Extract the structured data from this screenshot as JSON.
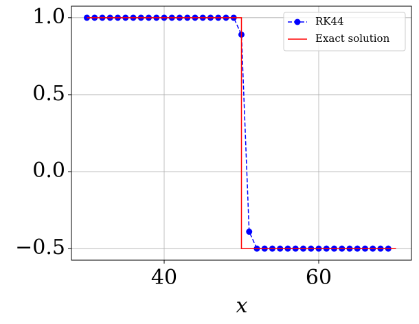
{
  "chart_data": {
    "type": "line",
    "xlabel": "x",
    "xlim": [
      28,
      72
    ],
    "ylim": [
      -0.575,
      1.075
    ],
    "xticks": [
      40,
      60
    ],
    "yticks": [
      {
        "value": -0.5,
        "label": "−0.5"
      },
      {
        "value": 0,
        "label": "0.0"
      },
      {
        "value": 0.5,
        "label": "0.5"
      },
      {
        "value": 1,
        "label": "1.0"
      }
    ],
    "grid": true,
    "legend": "upper right",
    "series": [
      {
        "name": "RK44",
        "color": "#0000ff",
        "linestyle": "dashed",
        "marker": "o",
        "x": [
          30,
          31,
          32,
          33,
          34,
          35,
          36,
          37,
          38,
          39,
          40,
          41,
          42,
          43,
          44,
          45,
          46,
          47,
          48,
          49,
          50,
          51,
          52,
          53,
          54,
          55,
          56,
          57,
          58,
          59,
          60,
          61,
          62,
          63,
          64,
          65,
          66,
          67,
          68,
          69
        ],
        "values": [
          1,
          1,
          1,
          1,
          1,
          1,
          1,
          1,
          1,
          1,
          1,
          1,
          1,
          1,
          1,
          1,
          1,
          1,
          1,
          1,
          0.89,
          -0.39,
          -0.5,
          -0.5,
          -0.5,
          -0.5,
          -0.5,
          -0.5,
          -0.5,
          -0.5,
          -0.5,
          -0.5,
          -0.5,
          -0.5,
          -0.5,
          -0.5,
          -0.5,
          -0.5,
          -0.5,
          -0.5
        ]
      },
      {
        "name": "Exact solution",
        "color": "#ff0000",
        "linestyle": "solid",
        "x": [
          30,
          50,
          50,
          70
        ],
        "values": [
          1,
          1,
          -0.5,
          -0.5
        ]
      }
    ]
  }
}
